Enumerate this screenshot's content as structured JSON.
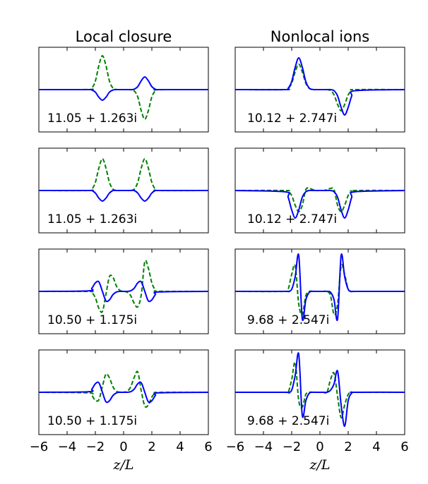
{
  "chart_data": [
    {
      "type": "line",
      "title": "Local closure",
      "annotation": "11.05 + 1.263i",
      "x": [
        -6,
        -2.5,
        -2.25,
        -2,
        -1.75,
        -1.5,
        -1.25,
        -1,
        -0.75,
        -0.5,
        -0.25,
        0,
        0.25,
        0.5,
        0.75,
        1,
        1.25,
        1.5,
        1.75,
        2,
        2.25,
        2.5,
        6
      ],
      "xlim": [
        -6,
        6
      ],
      "xticks": [
        -6,
        -4,
        -2,
        0,
        2,
        4,
        6
      ],
      "ylim": [
        -1,
        1
      ],
      "series": [
        {
          "color": "#008000",
          "linestyle": "dashed",
          "values": [
            0,
            0.003,
            0.035,
            0.2,
            0.57,
            0.8,
            0.57,
            0.2,
            0.035,
            0.003,
            0,
            0,
            0,
            -0.003,
            -0.03,
            -0.17,
            -0.5,
            -0.7,
            -0.5,
            -0.17,
            -0.03,
            -0.003,
            0
          ]
        },
        {
          "color": "#0000ff",
          "linestyle": "solid",
          "values": [
            0,
            0,
            -0.01,
            -0.06,
            -0.18,
            -0.25,
            -0.18,
            -0.06,
            -0.01,
            0,
            0,
            0,
            0,
            0,
            0.01,
            0.07,
            0.21,
            0.3,
            0.21,
            0.07,
            0.01,
            0,
            0
          ]
        }
      ]
    },
    {
      "type": "line",
      "title": "Nonlocal ions",
      "annotation": "10.12 + 2.747i",
      "x": [
        -6,
        -2.5,
        -2.25,
        -2,
        -1.75,
        -1.5,
        -1.25,
        -1,
        -0.75,
        -0.5,
        -0.25,
        0,
        0.25,
        0.5,
        0.75,
        1,
        1.25,
        1.5,
        1.75,
        2,
        2.25,
        2.5,
        6
      ],
      "xlim": [
        -6,
        6
      ],
      "xticks": [
        -6,
        -4,
        -2,
        0,
        2,
        4,
        6
      ],
      "ylim": [
        -1,
        1
      ],
      "series": [
        {
          "color": "#008000",
          "linestyle": "dashed",
          "values": [
            0,
            0,
            0.026,
            0.15,
            0.42,
            0.6,
            0.42,
            0.15,
            0.026,
            0,
            0,
            0,
            0,
            0,
            -0.022,
            -0.125,
            -0.35,
            -0.5,
            -0.35,
            -0.125,
            -0.022,
            0,
            0
          ]
        },
        {
          "color": "#0000ff",
          "linestyle": "solid",
          "values": [
            0,
            0,
            0.033,
            0.19,
            0.53,
            0.75,
            0.53,
            0.19,
            0.033,
            0.003,
            0,
            0,
            0,
            0,
            0,
            -0.026,
            -0.15,
            -0.42,
            -0.6,
            -0.42,
            -0.15,
            -0.026,
            0
          ]
        }
      ]
    },
    {
      "type": "line",
      "annotation": "11.05 + 1.263i",
      "x": [
        -6,
        -2.5,
        -2.25,
        -2,
        -1.75,
        -1.5,
        -1.25,
        -1,
        -0.75,
        -0.5,
        -0.25,
        0,
        0.25,
        0.5,
        0.75,
        1,
        1.25,
        1.5,
        1.75,
        2,
        2.25,
        2.5,
        6
      ],
      "xlim": [
        -6,
        6
      ],
      "xticks": [
        -6,
        -4,
        -2,
        0,
        2,
        4,
        6
      ],
      "ylim": [
        -1,
        1
      ],
      "series": [
        {
          "color": "#008000",
          "linestyle": "dashed",
          "values": [
            0,
            0,
            0.03,
            0.19,
            0.53,
            0.75,
            0.53,
            0.19,
            0.03,
            0,
            0,
            0,
            0,
            0,
            0.03,
            0.19,
            0.53,
            0.75,
            0.53,
            0.19,
            0.03,
            0,
            0
          ]
        },
        {
          "color": "#0000ff",
          "linestyle": "solid",
          "values": [
            0,
            0,
            0,
            -0.06,
            -0.18,
            -0.25,
            -0.18,
            -0.06,
            0,
            0,
            0,
            0,
            0,
            0,
            0,
            -0.06,
            -0.18,
            -0.25,
            -0.18,
            -0.06,
            0,
            0,
            0
          ]
        }
      ]
    },
    {
      "type": "line",
      "annotation": "10.12 + 2.747i",
      "x": [
        -6,
        -2.5,
        -2.25,
        -2,
        -1.75,
        -1.5,
        -1.25,
        -1,
        -0.75,
        -0.5,
        -0.25,
        0,
        0.25,
        0.5,
        0.75,
        1,
        1.25,
        1.5,
        1.75,
        2,
        2.25,
        2.5,
        6
      ],
      "xlim": [
        -6,
        6
      ],
      "xticks": [
        -6,
        -4,
        -2,
        0,
        2,
        4,
        6
      ],
      "ylim": [
        -1,
        1
      ],
      "series": [
        {
          "color": "#008000",
          "linestyle": "dashed",
          "values": [
            0,
            0,
            -0.02,
            -0.12,
            -0.35,
            -0.5,
            -0.35,
            0.02,
            0.05,
            0.02,
            0,
            0,
            0,
            0.02,
            0.05,
            0.02,
            -0.35,
            -0.5,
            -0.35,
            -0.12,
            -0.02,
            0,
            0
          ]
        },
        {
          "color": "#0000ff",
          "linestyle": "solid",
          "values": [
            0,
            -0.03,
            -0.16,
            -0.46,
            -0.65,
            -0.46,
            -0.16,
            -0.03,
            0,
            0,
            0,
            0,
            0,
            0,
            0,
            -0.03,
            -0.16,
            -0.46,
            -0.65,
            -0.46,
            -0.16,
            -0.03,
            0
          ]
        }
      ]
    },
    {
      "type": "line",
      "annotation": "10.50 + 1.175i",
      "x": [
        -6,
        -2.5,
        -2.25,
        -2,
        -1.75,
        -1.5,
        -1.25,
        -1,
        -0.75,
        -0.5,
        -0.25,
        0,
        0.25,
        0.5,
        0.75,
        1,
        1.25,
        1.5,
        1.75,
        2,
        2.25,
        2.5,
        6
      ],
      "xlim": [
        -6,
        6
      ],
      "xticks": [
        -6,
        -4,
        -2,
        0,
        2,
        4,
        6
      ],
      "ylim": [
        -1,
        1
      ],
      "series": [
        {
          "color": "#008000",
          "linestyle": "dashed",
          "values": [
            0,
            -0.002,
            -0.026,
            -0.15,
            -0.4,
            -0.475,
            -0.07,
            0.35,
            0.33,
            0.12,
            0.022,
            0.002,
            -0.018,
            -0.1,
            -0.28,
            -0.365,
            -0.08,
            0.7,
            0.55,
            0.2,
            0.035,
            0.003,
            0
          ]
        },
        {
          "color": "#0000ff",
          "linestyle": "solid",
          "values": [
            0,
            0.013,
            0.074,
            0.2,
            0.225,
            0,
            -0.225,
            -0.2,
            -0.074,
            -0.013,
            0,
            0,
            0,
            0.013,
            0.074,
            0.2,
            0.225,
            0,
            -0.225,
            -0.2,
            -0.075,
            -0.013,
            0
          ]
        }
      ]
    },
    {
      "type": "line",
      "annotation": "9.68 + 2.547i",
      "x": [
        -6,
        -2.5,
        -2.25,
        -2,
        -1.75,
        -1.5,
        -1.25,
        -1,
        -0.75,
        -0.5,
        -0.25,
        0,
        0.25,
        0.5,
        0.75,
        1,
        1.25,
        1.5,
        1.75,
        2,
        2.25,
        2.5,
        6
      ],
      "xlim": [
        -6,
        6
      ],
      "xticks": [
        -6,
        -4,
        -2,
        0,
        2,
        4,
        6
      ],
      "ylim": [
        -1,
        1
      ],
      "series": [
        {
          "color": "#008000",
          "linestyle": "dashed",
          "values": [
            0,
            0,
            0.05,
            0.4,
            0.6,
            -0.3,
            -0.55,
            -0.1,
            0,
            0,
            0,
            0,
            0,
            0,
            -0.1,
            -0.55,
            -0.3,
            0.6,
            0.4,
            0.05,
            0,
            0,
            0
          ]
        },
        {
          "color": "#0000ff",
          "linestyle": "solid",
          "values": [
            0,
            0,
            0,
            0.05,
            0.35,
            0.85,
            -0.65,
            -0.2,
            -0.02,
            0,
            0,
            0,
            0,
            0,
            -0.02,
            -0.2,
            -0.65,
            0.85,
            0.35,
            0.05,
            0,
            0,
            0
          ]
        }
      ]
    },
    {
      "type": "line",
      "annotation": "10.50 + 1.175i",
      "xlabel": "z/L",
      "x": [
        -6,
        -2.5,
        -2.25,
        -2,
        -1.75,
        -1.5,
        -1.25,
        -1,
        -0.75,
        -0.5,
        -0.25,
        0,
        0.25,
        0.5,
        0.75,
        1,
        1.25,
        1.5,
        1.75,
        2,
        2.25,
        2.5,
        6
      ],
      "xlim": [
        -6,
        6
      ],
      "xticks": [
        {
          "value": -6,
          "label": "−6"
        },
        {
          "value": -4,
          "label": "−4"
        },
        {
          "value": -2,
          "label": "−2"
        },
        0,
        2,
        4,
        6
      ],
      "ylim": [
        -1,
        1
      ],
      "series": [
        {
          "color": "#008000",
          "linestyle": "dashed",
          "values": [
            0,
            -0.013,
            -0.075,
            -0.19,
            -0.175,
            0.14,
            0.425,
            0.34,
            0.125,
            0.022,
            0.002,
            0.002,
            0.022,
            0.125,
            0.35,
            0.48,
            0.035,
            -0.325,
            -0.3,
            -0.11,
            -0.02,
            -0.002,
            0
          ]
        },
        {
          "color": "#0000ff",
          "linestyle": "solid",
          "values": [
            0,
            0.013,
            0.074,
            0.2,
            0.225,
            0,
            -0.225,
            -0.2,
            -0.074,
            -0.013,
            0,
            0,
            0,
            0.013,
            0.074,
            0.2,
            0.225,
            0,
            -0.225,
            -0.2,
            -0.075,
            -0.013,
            0
          ]
        }
      ]
    },
    {
      "type": "line",
      "annotation": "9.68 + 2.547i",
      "xlabel": "z/L",
      "x": [
        -6,
        -2.5,
        -2.25,
        -2,
        -1.75,
        -1.5,
        -1.25,
        -1,
        -0.75,
        -0.5,
        -0.25,
        0,
        0.25,
        0.5,
        0.75,
        1,
        1.25,
        1.5,
        1.75,
        2,
        2.25,
        2.5,
        6
      ],
      "xlim": [
        -6,
        6
      ],
      "xticks": [
        {
          "value": -6,
          "label": "−6"
        },
        {
          "value": -4,
          "label": "−4"
        },
        {
          "value": -2,
          "label": "−2"
        },
        0,
        2,
        4,
        6
      ],
      "ylim": [
        -1,
        1
      ],
      "series": [
        {
          "color": "#008000",
          "linestyle": "dashed",
          "values": [
            0,
            0,
            0,
            0.3,
            0.7,
            -0.2,
            -0.35,
            -0.05,
            0,
            0,
            0,
            0,
            0,
            0,
            0.3,
            0.45,
            -0.1,
            -0.6,
            -0.3,
            -0.05,
            0,
            0,
            0
          ]
        },
        {
          "color": "#0000ff",
          "linestyle": "solid",
          "values": [
            0,
            0,
            0,
            0.05,
            0.4,
            0.9,
            -0.55,
            -0.2,
            -0.02,
            0,
            0,
            0,
            0,
            0,
            0.05,
            0.2,
            0.5,
            -0.3,
            -0.8,
            -0.2,
            -0.02,
            0,
            0
          ]
        }
      ]
    }
  ]
}
